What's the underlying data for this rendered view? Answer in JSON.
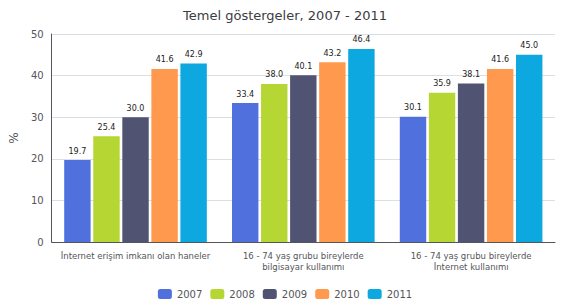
{
  "chart_data": {
    "type": "bar",
    "title": "Temel göstergeler, 2007 - 2011",
    "ylabel": "%",
    "categories": [
      "İnternet erişim imkanı olan haneler",
      "16 - 74 yaş grubu bireylerde\nbilgisayar kullanımı",
      "16 - 74 yaş grubu bireylerde\nİnternet kullanımı"
    ],
    "series": [
      {
        "name": "2007",
        "values": [
          19.7,
          33.4,
          30.1
        ],
        "value_labels": [
          "19.7",
          "33.4",
          "30.1"
        ]
      },
      {
        "name": "2008",
        "values": [
          25.4,
          38.0,
          35.9
        ],
        "value_labels": [
          "25.4",
          "38.0",
          "35.9"
        ]
      },
      {
        "name": "2009",
        "values": [
          30.0,
          40.1,
          38.1
        ],
        "value_labels": [
          "30.0",
          "40.1",
          "38.1"
        ]
      },
      {
        "name": "2010",
        "values": [
          41.6,
          43.2,
          41.6
        ],
        "value_labels": [
          "41.6",
          "43.2",
          "41.6"
        ]
      },
      {
        "name": "2011",
        "values": [
          42.9,
          46.4,
          45.0
        ],
        "value_labels": [
          "42.9",
          "46.4",
          "45.0"
        ]
      }
    ],
    "ylim": [
      0,
      50
    ],
    "yticks": [
      0,
      10,
      20,
      30,
      40,
      50
    ],
    "grid": true,
    "legend": "bottom",
    "data_labels": true
  }
}
